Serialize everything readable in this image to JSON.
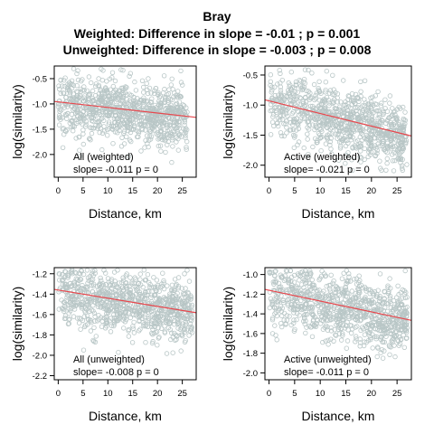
{
  "titles": [
    "Bray",
    "Weighted: Difference in slope = -0.01 ; p = 0.001",
    "Unweighted: Difference in slope = -0.003 ; p = 0.008"
  ],
  "colors": {
    "points": "#b8c6c6",
    "fit_line": "#e8474d",
    "axes": "#000000"
  },
  "chart_data": [
    {
      "type": "scatter",
      "title": "",
      "xlabel": "Distance, km",
      "ylabel": "log(similarity)",
      "xlim": [
        -0.8,
        27.8
      ],
      "ylim": [
        -2.45,
        -0.25
      ],
      "xticks": [
        0,
        5,
        10,
        15,
        20,
        25
      ],
      "yticks": [
        -0.5,
        -1.0,
        -1.5,
        -2.0
      ],
      "ytick_labels": [
        "-0.5",
        "-1.0",
        "-1.5",
        "-2.0"
      ],
      "fit": {
        "intercept": -0.96,
        "slope": -0.011
      },
      "legend_lines": [
        "All (weighted)",
        "slope= -0.011  p =  0"
      ],
      "point_cloud": {
        "n": 900,
        "x_range": [
          0,
          26
        ],
        "y_center": -1.05,
        "y_spread": 0.3,
        "y_min": -2.3,
        "y_max": -0.3
      }
    },
    {
      "type": "scatter",
      "title": "",
      "xlabel": "Distance, km",
      "ylabel": "log(similarity)",
      "xlim": [
        -0.8,
        27.8
      ],
      "ylim": [
        -2.2,
        -0.35
      ],
      "xticks": [
        0,
        5,
        10,
        15,
        20,
        25
      ],
      "yticks": [
        -0.5,
        -1.0,
        -1.5,
        -2.0
      ],
      "ytick_labels": [
        "-0.5",
        "-1.0",
        "-1.5",
        "-2.0"
      ],
      "fit": {
        "intercept": -0.93,
        "slope": -0.021
      },
      "legend_lines": [
        "Active (weighted)",
        "slope= -0.021  p =  0"
      ],
      "point_cloud": {
        "n": 900,
        "x_range": [
          0,
          27
        ],
        "y_center": -1.0,
        "y_spread": 0.28,
        "y_min": -2.1,
        "y_max": -0.4
      }
    },
    {
      "type": "scatter",
      "title": "",
      "xlabel": "Distance, km",
      "ylabel": "log(similarity)",
      "xlim": [
        -0.8,
        27.8
      ],
      "ylim": [
        -2.24,
        -1.14
      ],
      "xticks": [
        0,
        5,
        10,
        15,
        20,
        25
      ],
      "yticks": [
        -1.2,
        -1.4,
        -1.6,
        -1.8,
        -2.0,
        -2.2
      ],
      "ytick_labels": [
        "-1.2",
        "-1.4",
        "-1.6",
        "-1.8",
        "-2.0",
        "-2.2"
      ],
      "fit": {
        "intercept": -1.36,
        "slope": -0.008
      },
      "legend_lines": [
        "All (unweighted)",
        "slope= -0.008  p =  0"
      ],
      "point_cloud": {
        "n": 900,
        "x_range": [
          0,
          27
        ],
        "y_center": -1.42,
        "y_spread": 0.15,
        "y_min": -2.2,
        "y_max": -1.16
      }
    },
    {
      "type": "scatter",
      "title": "",
      "xlabel": "Distance, km",
      "ylabel": "log(similarity)",
      "xlim": [
        -0.8,
        27.8
      ],
      "ylim": [
        -2.07,
        -0.93
      ],
      "xticks": [
        0,
        5,
        10,
        15,
        20,
        25
      ],
      "yticks": [
        -1.0,
        -1.2,
        -1.4,
        -1.6,
        -1.8,
        -2.0
      ],
      "ytick_labels": [
        "-1.0",
        "-1.2",
        "-1.4",
        "-1.6",
        "-1.8",
        "-2.0"
      ],
      "fit": {
        "intercept": -1.16,
        "slope": -0.011
      },
      "legend_lines": [
        "Active (unweighted)",
        "slope= -0.011  p =  0"
      ],
      "point_cloud": {
        "n": 900,
        "x_range": [
          0,
          27
        ],
        "y_center": -1.28,
        "y_spread": 0.17,
        "y_min": -2.0,
        "y_max": -0.96
      }
    }
  ]
}
